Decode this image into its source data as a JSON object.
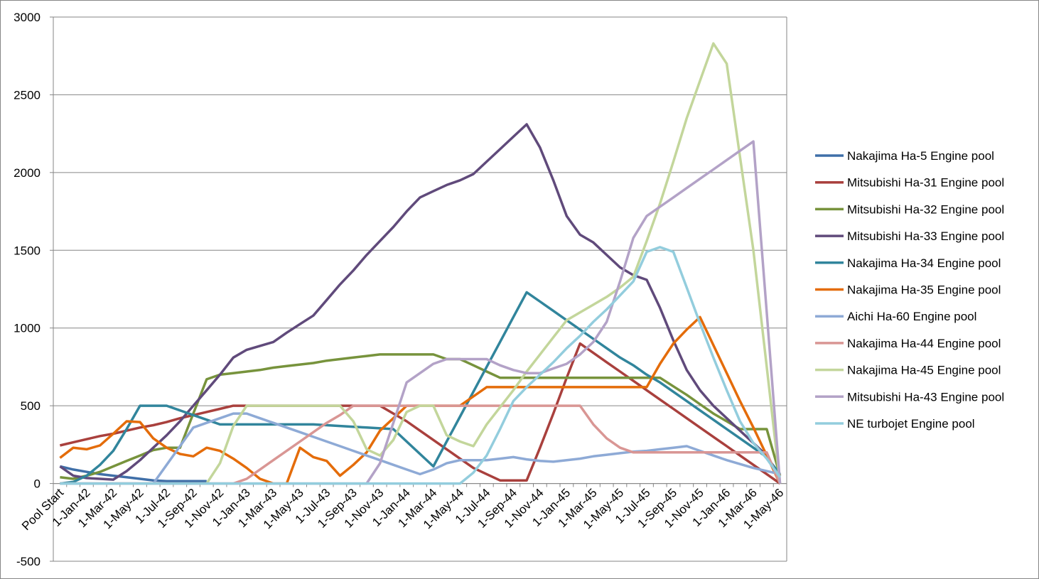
{
  "chart_data": {
    "type": "line",
    "categories": [
      "Pool Start",
      null,
      "1-Jan-42",
      null,
      "1-Mar-42",
      null,
      "1-May-42",
      null,
      "1-Jul-42",
      null,
      "1-Sep-42",
      null,
      "1-Nov-42",
      null,
      "1-Jan-43",
      null,
      "1-Mar-43",
      null,
      "1-May-43",
      null,
      "1-Jul-43",
      null,
      "1-Sep-43",
      null,
      "1-Nov-43",
      null,
      "1-Jan-44",
      null,
      "1-Mar-44",
      null,
      "1-May-44",
      null,
      "1-Jul-44",
      null,
      "1-Sep-44",
      null,
      "1-Nov-44",
      null,
      "1-Jan-45",
      null,
      "1-Mar-45",
      null,
      "1-May-45",
      null,
      "1-Jul-45",
      null,
      "1-Sep-45",
      null,
      "1-Nov-45",
      null,
      "1-Jan-46",
      null,
      "1-Mar-46",
      null,
      "1-May-46"
    ],
    "ylim": [
      -500,
      3000
    ],
    "yticks": [
      -500,
      0,
      500,
      1000,
      1500,
      2000,
      2500,
      3000
    ],
    "grid": true,
    "legend": "right",
    "series": [
      {
        "name": "Nakajima Ha-5 Engine pool",
        "color": "#3f6fa8",
        "values": [
          110,
          90,
          75,
          60,
          50,
          40,
          30,
          20,
          15,
          15,
          15,
          15,
          null,
          null,
          null,
          null,
          null,
          null,
          null,
          null,
          null,
          null,
          null,
          null,
          null,
          null,
          null,
          null,
          null,
          null,
          null,
          null,
          null,
          null,
          null,
          null,
          null,
          null,
          null,
          null,
          null,
          null,
          null,
          null,
          null,
          null,
          null,
          null,
          null,
          null,
          null,
          null,
          null,
          null,
          null
        ]
      },
      {
        "name": "Mitsubishi Ha-31 Engine pool",
        "color": "#a9403d",
        "values": [
          245,
          265,
          285,
          305,
          320,
          340,
          360,
          375,
          395,
          420,
          440,
          460,
          480,
          500,
          500,
          500,
          500,
          500,
          500,
          500,
          500,
          500,
          500,
          500,
          500,
          450,
          400,
          340,
          280,
          220,
          160,
          100,
          60,
          20,
          20,
          20,
          230,
          450,
          680,
          900,
          840,
          780,
          720,
          660,
          600,
          540,
          480,
          420,
          360,
          300,
          240,
          180,
          120,
          60,
          0
        ]
      },
      {
        "name": "Mitsubishi Ha-32 Engine pool",
        "color": "#77933c",
        "values": [
          40,
          30,
          50,
          75,
          110,
          145,
          180,
          215,
          230,
          230,
          450,
          670,
          700,
          710,
          720,
          730,
          745,
          755,
          765,
          775,
          790,
          800,
          810,
          820,
          830,
          830,
          830,
          830,
          830,
          800,
          800,
          760,
          720,
          680,
          680,
          680,
          680,
          680,
          680,
          680,
          680,
          680,
          680,
          680,
          680,
          680,
          625,
          570,
          510,
          450,
          400,
          350,
          350,
          350,
          50
        ]
      },
      {
        "name": "Mitsubishi Ha-33 Engine pool",
        "color": "#604a7b",
        "values": [
          110,
          50,
          35,
          30,
          25,
          80,
          150,
          230,
          310,
          400,
          500,
          600,
          700,
          810,
          860,
          885,
          910,
          970,
          1025,
          1080,
          1180,
          1280,
          1370,
          1470,
          1560,
          1650,
          1750,
          1840,
          1880,
          1920,
          1950,
          1990,
          2070,
          2150,
          2230,
          2310,
          2160,
          1950,
          1720,
          1600,
          1550,
          1470,
          1390,
          1340,
          1310,
          1130,
          920,
          730,
          600,
          500,
          420,
          340,
          260,
          180,
          0
        ]
      },
      {
        "name": "Nakajima Ha-34 Engine pool",
        "color": "#31859c",
        "values": [
          0,
          10,
          50,
          120,
          210,
          350,
          500,
          500,
          500,
          470,
          440,
          410,
          380,
          380,
          380,
          380,
          380,
          380,
          380,
          380,
          375,
          370,
          365,
          360,
          355,
          350,
          270,
          190,
          110,
          270,
          430,
          590,
          750,
          910,
          1070,
          1230,
          1170,
          1110,
          1050,
          990,
          930,
          870,
          810,
          760,
          700,
          650,
          590,
          530,
          470,
          410,
          350,
          290,
          230,
          170,
          60
        ]
      },
      {
        "name": "Nakajima Ha-35 Engine pool",
        "color": "#e46c0a",
        "values": [
          165,
          230,
          220,
          245,
          320,
          400,
          395,
          290,
          230,
          190,
          175,
          230,
          210,
          160,
          100,
          30,
          0,
          0,
          230,
          170,
          145,
          50,
          120,
          200,
          340,
          420,
          500,
          500,
          500,
          500,
          500,
          560,
          620,
          620,
          620,
          620,
          620,
          620,
          620,
          620,
          620,
          620,
          620,
          620,
          620,
          770,
          900,
          990,
          1070,
          890,
          710,
          530,
          360,
          180,
          0
        ]
      },
      {
        "name": "Aichi Ha-60 Engine pool",
        "color": "#8eaad6",
        "values": [
          0,
          0,
          0,
          0,
          0,
          0,
          0,
          0,
          120,
          240,
          360,
          390,
          420,
          450,
          450,
          420,
          390,
          360,
          330,
          300,
          270,
          240,
          210,
          180,
          150,
          120,
          90,
          60,
          90,
          130,
          150,
          150,
          150,
          160,
          170,
          155,
          145,
          140,
          150,
          160,
          175,
          185,
          195,
          205,
          210,
          220,
          230,
          240,
          210,
          180,
          150,
          125,
          100,
          80,
          60
        ]
      },
      {
        "name": "Nakajima Ha-44 Engine pool",
        "color": "#d99694",
        "values": [
          0,
          0,
          0,
          0,
          0,
          0,
          0,
          0,
          0,
          0,
          0,
          0,
          0,
          0,
          30,
          90,
          150,
          210,
          270,
          330,
          390,
          440,
          500,
          500,
          500,
          500,
          500,
          500,
          500,
          500,
          500,
          500,
          500,
          500,
          500,
          500,
          500,
          500,
          500,
          500,
          380,
          290,
          230,
          200,
          200,
          200,
          200,
          200,
          200,
          200,
          200,
          200,
          200,
          200,
          0
        ]
      },
      {
        "name": "Nakajima Ha-45 Engine pool",
        "color": "#c3d69b",
        "values": [
          0,
          0,
          0,
          0,
          0,
          0,
          0,
          0,
          0,
          0,
          0,
          0,
          130,
          370,
          500,
          500,
          500,
          500,
          500,
          500,
          500,
          500,
          400,
          220,
          180,
          280,
          460,
          500,
          500,
          310,
          270,
          240,
          380,
          490,
          600,
          720,
          830,
          940,
          1050,
          1100,
          1150,
          1200,
          1260,
          1330,
          1560,
          1800,
          2070,
          2350,
          2590,
          2830,
          2700,
          2100,
          1500,
          750,
          0
        ]
      },
      {
        "name": "Mitsubishi Ha-43 Engine pool",
        "color": "#b3a2c7",
        "values": [
          0,
          0,
          0,
          0,
          0,
          0,
          0,
          0,
          0,
          0,
          0,
          0,
          0,
          0,
          0,
          0,
          0,
          0,
          0,
          0,
          0,
          0,
          0,
          0,
          130,
          390,
          650,
          710,
          770,
          800,
          800,
          800,
          800,
          760,
          730,
          710,
          710,
          740,
          770,
          830,
          910,
          1040,
          1300,
          1580,
          1720,
          1780,
          1840,
          1900,
          1960,
          2020,
          2080,
          2140,
          2200,
          1100,
          0
        ]
      },
      {
        "name": "NE turbojet Engine pool",
        "color": "#93cddd",
        "values": [
          0,
          0,
          0,
          0,
          0,
          0,
          0,
          0,
          0,
          0,
          0,
          0,
          0,
          0,
          0,
          0,
          0,
          0,
          0,
          0,
          0,
          0,
          0,
          0,
          0,
          0,
          0,
          0,
          0,
          0,
          0,
          70,
          180,
          350,
          530,
          620,
          700,
          780,
          870,
          950,
          1040,
          1120,
          1210,
          1300,
          1490,
          1520,
          1490,
          1260,
          1030,
          810,
          600,
          400,
          260,
          160,
          40
        ]
      }
    ]
  }
}
